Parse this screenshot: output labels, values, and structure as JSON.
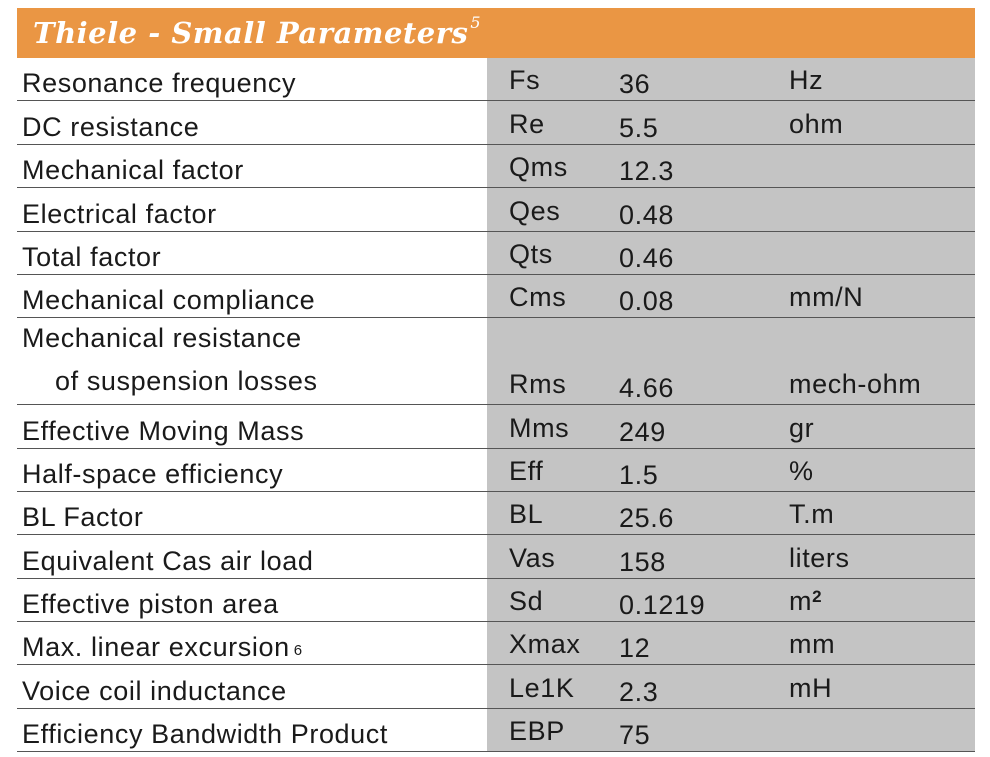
{
  "header": {
    "title": "Thiele - Small Parameters",
    "footnote": "5",
    "background_color": "#ea9644"
  },
  "rows": [
    {
      "name": "Resonance frequency",
      "symbol": "Fs",
      "value": "36",
      "unit": "Hz"
    },
    {
      "name": "DC resistance",
      "symbol": "Re",
      "value": "5.5",
      "unit": "ohm"
    },
    {
      "name": "Mechanical factor",
      "symbol": "Qms",
      "value": "12.3",
      "unit": ""
    },
    {
      "name": "Electrical factor",
      "symbol": "Qes",
      "value": "0.48",
      "unit": ""
    },
    {
      "name": "Total factor",
      "symbol": "Qts",
      "value": "0.46",
      "unit": ""
    },
    {
      "name": "Mechanical compliance",
      "symbol": "Cms",
      "value": "0.08",
      "unit": "mm/N"
    },
    {
      "name_line1": "Mechanical resistance",
      "name_line2": "of suspension losses",
      "symbol": "Rms",
      "value": "4.66",
      "unit": "mech-ohm"
    },
    {
      "name": "Effective Moving Mass",
      "symbol": "Mms",
      "value": "249",
      "unit": "gr"
    },
    {
      "name": "Half-space efficiency",
      "symbol": "Eff",
      "value": "1.5",
      "unit": "%"
    },
    {
      "name": "BL Factor",
      "symbol": "BL",
      "value": "25.6",
      "unit": "T.m"
    },
    {
      "name": "Equivalent Cas air load",
      "symbol": "Vas",
      "value": "158",
      "unit": "liters"
    },
    {
      "name": "Effective piston area",
      "symbol": "Sd",
      "value": "0.1219",
      "unit": "m",
      "unit_sup": "2"
    },
    {
      "name": "Max. linear excursion",
      "name_footnote": "6",
      "symbol": "Xmax",
      "value": "12",
      "unit": "mm"
    },
    {
      "name": "Voice coil inductance",
      "symbol": "Le1K",
      "value": "2.3",
      "unit": "mH"
    },
    {
      "name": "Efficiency Bandwidth Product",
      "symbol": "EBP",
      "value": "75",
      "unit": ""
    }
  ]
}
